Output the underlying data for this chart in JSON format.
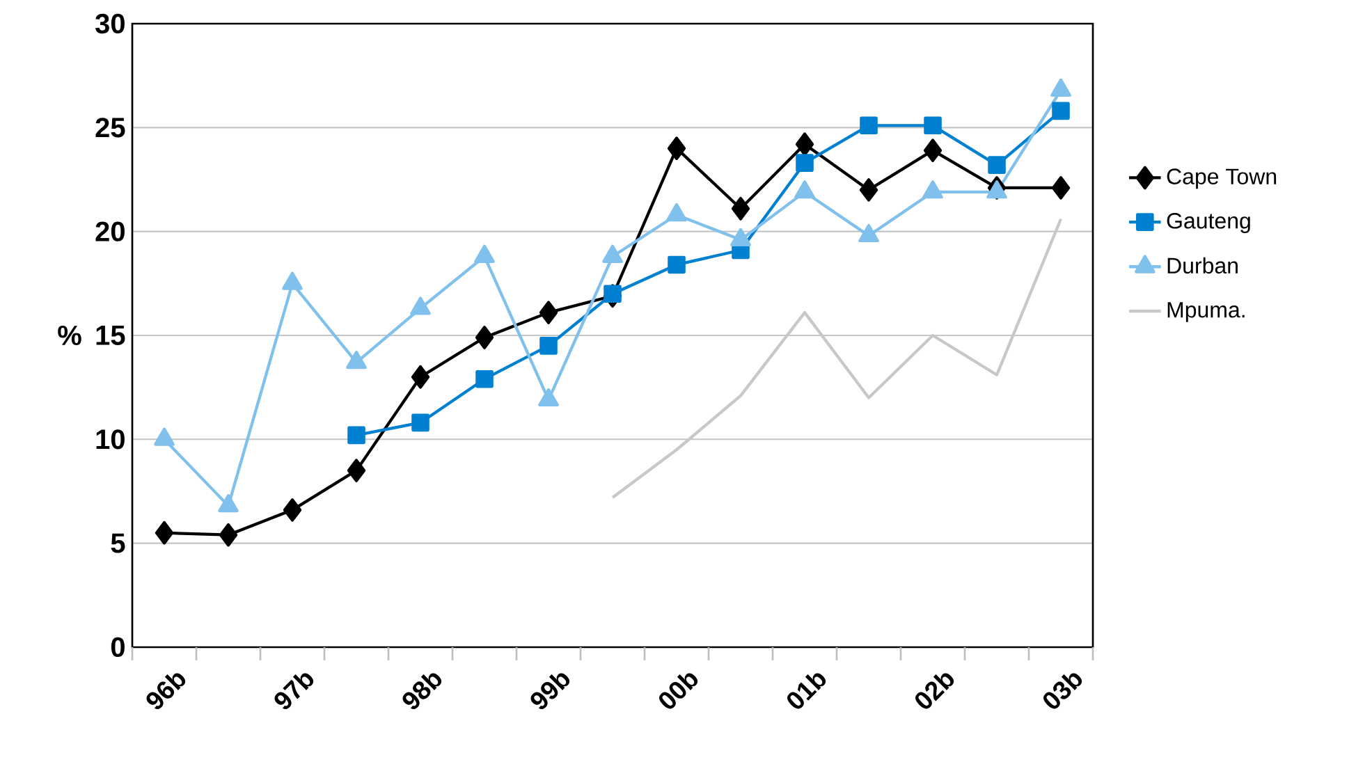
{
  "chart_data": {
    "type": "line",
    "ylabel": "%",
    "categories": [
      "96b",
      null,
      "97b",
      null,
      "98b",
      null,
      "99b",
      null,
      "00b",
      null,
      "01b",
      null,
      "02b",
      null,
      "03b"
    ],
    "series": [
      {
        "name": "Cape Town",
        "color": "#000000",
        "marker": "diamond",
        "values": [
          5.5,
          5.4,
          6.6,
          8.5,
          13.0,
          14.9,
          16.1,
          16.9,
          24.0,
          21.1,
          24.2,
          22.0,
          23.9,
          22.1,
          22.1
        ]
      },
      {
        "name": "Gauteng",
        "color": "#0080d0",
        "marker": "square",
        "values": [
          null,
          null,
          null,
          10.2,
          10.8,
          12.9,
          14.5,
          17.0,
          18.4,
          19.1,
          23.3,
          25.1,
          25.1,
          23.2,
          25.8
        ]
      },
      {
        "name": "Durban",
        "color": "#80c0ec",
        "marker": "triangle",
        "values": [
          10.0,
          6.8,
          17.5,
          13.7,
          16.3,
          18.8,
          11.9,
          18.8,
          20.8,
          19.6,
          21.9,
          19.8,
          21.9,
          21.9,
          26.8
        ]
      },
      {
        "name": "Mpuma.",
        "color": "#c8c8c8",
        "marker": "none",
        "values": [
          null,
          null,
          null,
          null,
          null,
          null,
          null,
          7.2,
          9.5,
          12.1,
          16.1,
          12.0,
          15.0,
          13.1,
          20.6
        ]
      }
    ],
    "ylim": [
      0,
      30
    ],
    "yticks": [
      0,
      5,
      10,
      15,
      20,
      25,
      30
    ],
    "grid": "y",
    "legend": "right"
  }
}
